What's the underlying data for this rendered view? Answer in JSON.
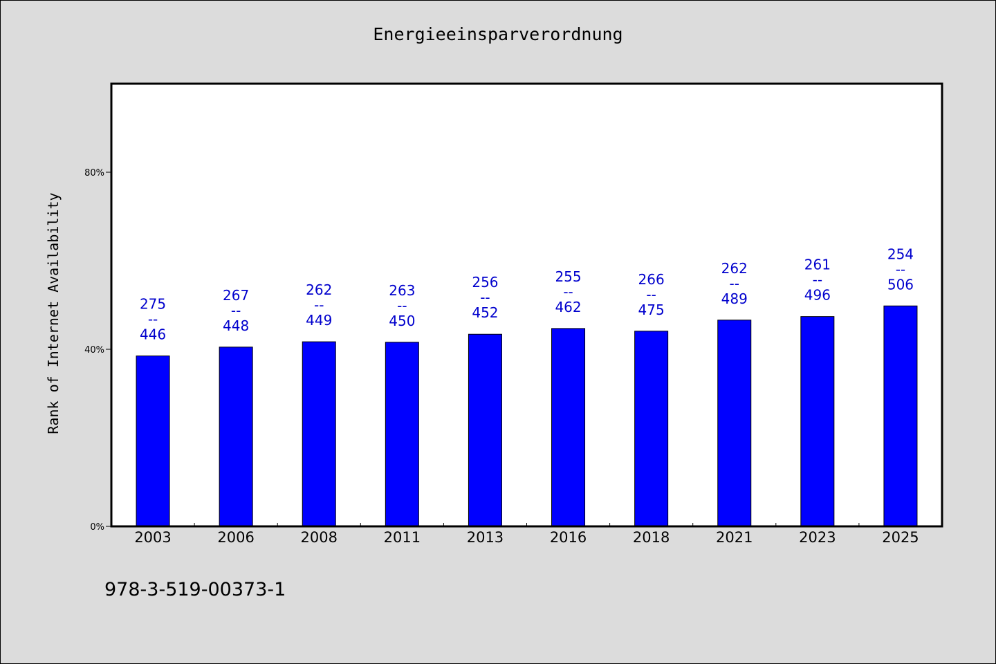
{
  "chart_data": {
    "type": "bar",
    "title": "Energieeinsparverordnung",
    "ylabel": "Rank of Internet Availability",
    "xlabel": "",
    "ylim": [
      0,
      100
    ],
    "yticks": [
      {
        "value": 0,
        "label": "0%"
      },
      {
        "value": 40,
        "label": "40%"
      },
      {
        "value": 80,
        "label": "80%"
      }
    ],
    "grid": false,
    "legend": "none",
    "bar_color": "#0000ff",
    "label_color": "#0000cd",
    "categories": [
      "2003",
      "2006",
      "2008",
      "2011",
      "2013",
      "2016",
      "2018",
      "2021",
      "2023",
      "2025"
    ],
    "values": [
      38.5,
      40.5,
      41.7,
      41.6,
      43.4,
      44.7,
      44.1,
      46.6,
      47.4,
      49.8
    ],
    "labels_top": [
      "275",
      "267",
      "262",
      "263",
      "256",
      "255",
      "266",
      "262",
      "261",
      "254"
    ],
    "labels_sep": "--",
    "labels_bottom": [
      "446",
      "448",
      "449",
      "450",
      "452",
      "462",
      "475",
      "489",
      "496",
      "506"
    ]
  },
  "footer": {
    "code": "978-3-519-00373-1"
  }
}
